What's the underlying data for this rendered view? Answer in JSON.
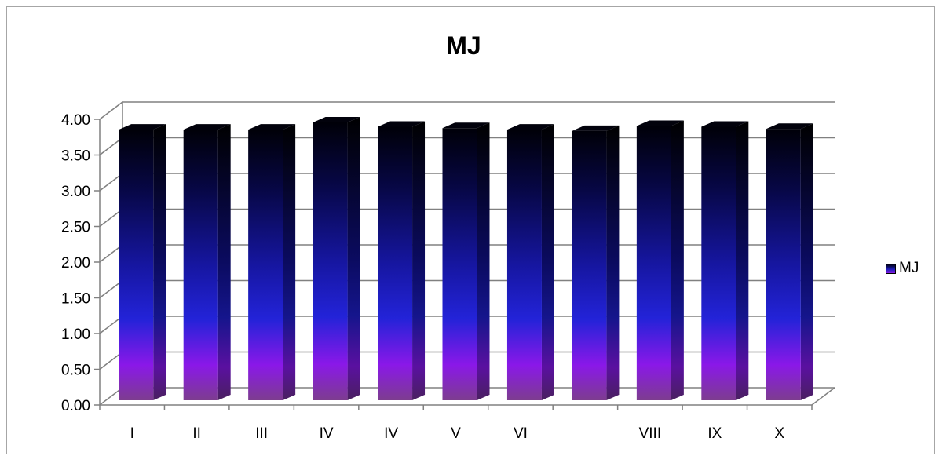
{
  "chart_data": {
    "type": "bar",
    "title": "MJ",
    "categories": [
      "I",
      "II",
      "III",
      "IV",
      "IV",
      "V",
      "VI",
      "",
      "VIII",
      "IX",
      "X"
    ],
    "series": [
      {
        "name": "MJ",
        "values": [
          3.9,
          3.9,
          3.9,
          4.0,
          3.94,
          3.92,
          3.9,
          3.88,
          3.95,
          3.94,
          3.91
        ]
      }
    ],
    "ylim": [
      0,
      4.0
    ],
    "yticks": [
      "0.00",
      "0.50",
      "1.00",
      "1.50",
      "2.00",
      "2.50",
      "3.00",
      "3.50",
      "4.00"
    ],
    "xlabel": "",
    "ylabel": "",
    "grid": true,
    "legend_position": "right",
    "colors": {
      "bar_top": "#000010",
      "bar_mid": "#1b1bb8",
      "bar_low": "#8a1ee6",
      "bar_base": "#7a3b8a",
      "gridline": "#808080"
    }
  }
}
